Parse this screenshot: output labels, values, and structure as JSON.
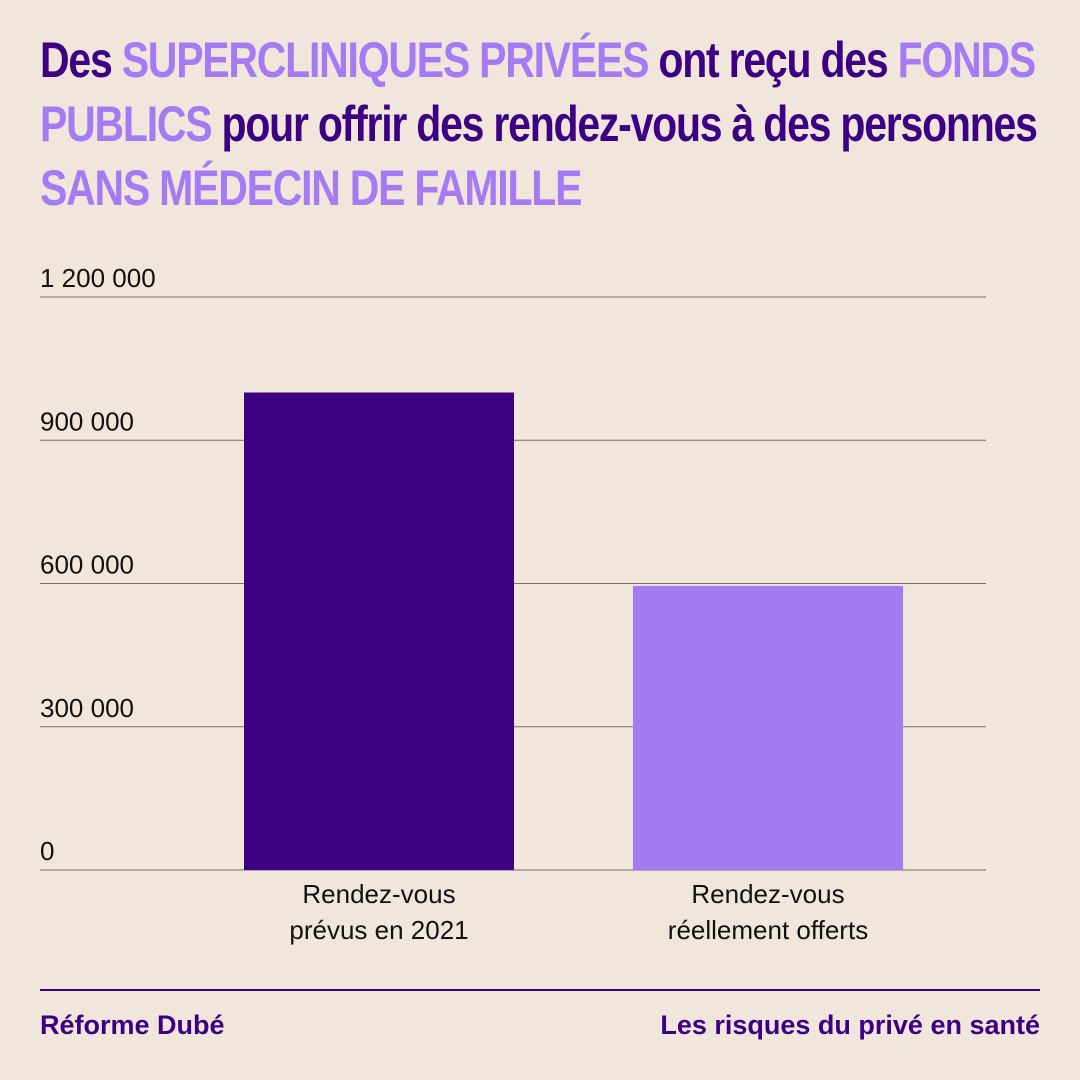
{
  "title_segments": [
    {
      "text": "Des ",
      "tone": "dark"
    },
    {
      "text": "SUPERCLINIQUES PRIVÉES",
      "tone": "light"
    },
    {
      "text": " ont reçu des ",
      "tone": "dark"
    },
    {
      "text": "FONDS PUBLICS",
      "tone": "light"
    },
    {
      "text": " pour offrir des rendez-vous à des personnes ",
      "tone": "dark"
    },
    {
      "text": "SANS MÉDECIN DE FAMILLE",
      "tone": "light"
    }
  ],
  "colors": {
    "background": "#f0e6dc",
    "dark_purple": "#3d0083",
    "light_purple": "#a57bf3",
    "grid": "#7a6f6a",
    "text": "#111111"
  },
  "chart_data": {
    "type": "bar",
    "categories": [
      [
        "Rendez-vous",
        "prévus en 2021"
      ],
      [
        "Rendez-vous",
        "réellement offerts"
      ]
    ],
    "values": [
      1000000,
      595000
    ],
    "bar_colors": [
      "#3d0083",
      "#a57bf3"
    ],
    "ylim": [
      0,
      1200000
    ],
    "yticks": [
      0,
      300000,
      600000,
      900000,
      1200000
    ],
    "ytick_labels": [
      "0",
      "300 000",
      "600 000",
      "900 000",
      "1 200 000"
    ],
    "grid": true,
    "xlabel": "",
    "ylabel": ""
  },
  "footer": {
    "left": "Réforme Dubé",
    "right": "Les risques du privé en santé"
  }
}
